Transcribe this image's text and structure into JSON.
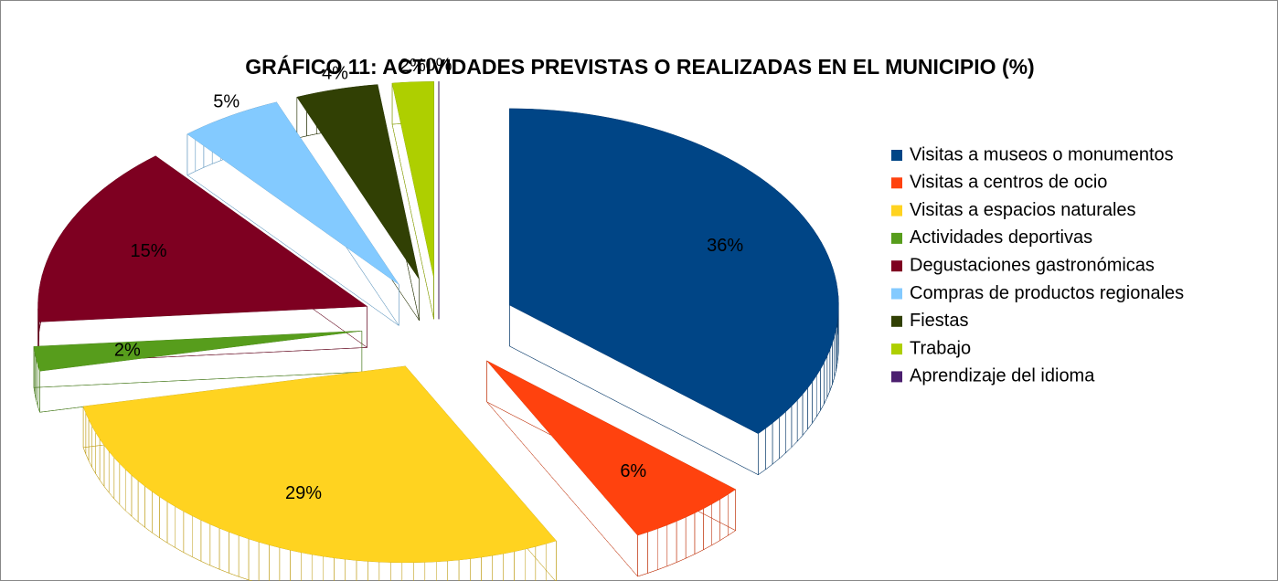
{
  "chart_data": {
    "type": "pie",
    "title": "GRÁFICO 11: ACTIVIDADES PREVISTAS O REALIZADAS EN EL MUNICIPIO (%)",
    "categories": [
      "Visitas a museos o monumentos",
      "Visitas a centros de ocio",
      "Visitas a espacios naturales",
      "Actividades deportivas",
      "Degustaciones gastronómicas",
      "Compras de productos regionales",
      "Fiestas",
      "Trabajo",
      "Aprendizaje del idioma"
    ],
    "values": [
      36,
      6,
      29,
      2,
      15,
      5,
      4,
      2,
      0
    ],
    "value_labels": [
      "36%",
      "6%",
      "29%",
      "2%",
      "15%",
      "5%",
      "4%",
      "2%",
      "0%"
    ],
    "colors": [
      "#004586",
      "#ff420e",
      "#ffd320",
      "#579d1c",
      "#7e0021",
      "#83caff",
      "#314004",
      "#aecf00",
      "#4b1f6f"
    ],
    "legend": "right"
  }
}
